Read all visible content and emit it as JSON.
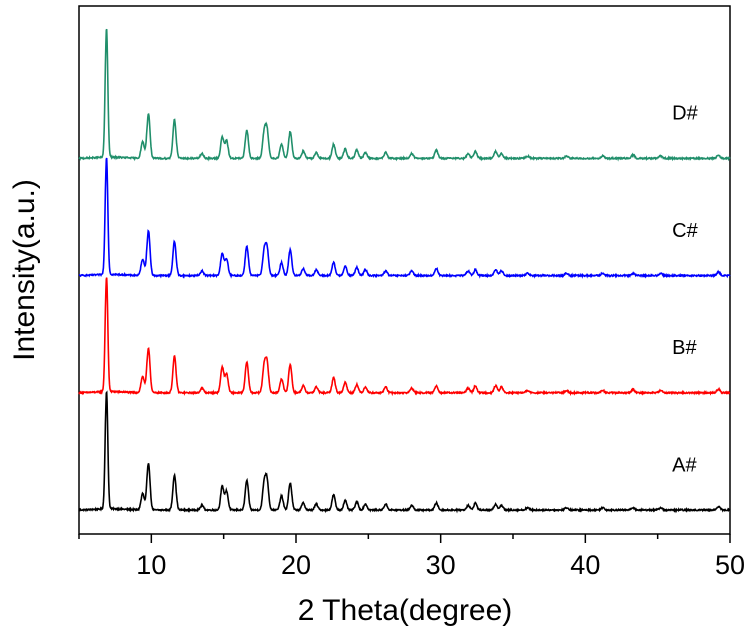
{
  "chart_data": {
    "type": "line",
    "title": "",
    "xlabel": "2 Theta(degree)",
    "ylabel": "Intensity(a.u.)",
    "xlim": [
      5,
      50
    ],
    "ylim": [
      0,
      4.3
    ],
    "x_ticks": [
      10,
      20,
      30,
      40,
      50
    ],
    "y_ticks_shown": false,
    "grid": false,
    "legend": "none",
    "series": [
      {
        "name": "A#",
        "color": "#000000",
        "offset": 0,
        "peaks": [
          [
            6.9,
            1.0
          ],
          [
            9.4,
            0.14
          ],
          [
            9.8,
            0.4
          ],
          [
            11.6,
            0.3
          ],
          [
            13.5,
            0.04
          ],
          [
            14.9,
            0.2
          ],
          [
            15.2,
            0.16
          ],
          [
            16.6,
            0.25
          ],
          [
            17.8,
            0.22
          ],
          [
            18.0,
            0.24
          ],
          [
            19.0,
            0.12
          ],
          [
            19.6,
            0.23
          ],
          [
            20.5,
            0.06
          ],
          [
            21.4,
            0.05
          ],
          [
            22.6,
            0.13
          ],
          [
            23.4,
            0.08
          ],
          [
            24.2,
            0.07
          ],
          [
            24.8,
            0.05
          ],
          [
            26.2,
            0.05
          ],
          [
            28.0,
            0.04
          ],
          [
            29.7,
            0.06
          ],
          [
            31.9,
            0.04
          ],
          [
            32.4,
            0.06
          ],
          [
            33.8,
            0.05
          ],
          [
            34.2,
            0.04
          ],
          [
            36.0,
            0.02
          ],
          [
            38.7,
            0.02
          ],
          [
            41.2,
            0.02
          ],
          [
            43.3,
            0.02
          ],
          [
            45.2,
            0.02
          ],
          [
            49.2,
            0.03
          ]
        ]
      },
      {
        "name": "B#",
        "color": "#ff0000",
        "offset": 1,
        "peaks": [
          [
            6.9,
            0.98
          ],
          [
            9.4,
            0.14
          ],
          [
            9.8,
            0.38
          ],
          [
            11.6,
            0.31
          ],
          [
            13.5,
            0.04
          ],
          [
            14.9,
            0.22
          ],
          [
            15.2,
            0.16
          ],
          [
            16.6,
            0.26
          ],
          [
            17.8,
            0.22
          ],
          [
            18.0,
            0.24
          ],
          [
            19.0,
            0.12
          ],
          [
            19.6,
            0.24
          ],
          [
            20.5,
            0.06
          ],
          [
            21.4,
            0.05
          ],
          [
            22.6,
            0.13
          ],
          [
            23.4,
            0.09
          ],
          [
            24.2,
            0.07
          ],
          [
            24.8,
            0.05
          ],
          [
            26.2,
            0.05
          ],
          [
            28.0,
            0.04
          ],
          [
            29.7,
            0.06
          ],
          [
            31.9,
            0.04
          ],
          [
            32.4,
            0.06
          ],
          [
            33.8,
            0.06
          ],
          [
            34.2,
            0.05
          ],
          [
            36.0,
            0.02
          ],
          [
            38.7,
            0.02
          ],
          [
            41.2,
            0.02
          ],
          [
            43.3,
            0.03
          ],
          [
            45.2,
            0.02
          ],
          [
            49.2,
            0.03
          ]
        ]
      },
      {
        "name": "C#",
        "color": "#0000ff",
        "offset": 2,
        "peaks": [
          [
            6.9,
            1.0
          ],
          [
            9.4,
            0.14
          ],
          [
            9.8,
            0.38
          ],
          [
            11.6,
            0.29
          ],
          [
            13.5,
            0.04
          ],
          [
            14.9,
            0.19
          ],
          [
            15.2,
            0.14
          ],
          [
            16.6,
            0.25
          ],
          [
            17.8,
            0.2
          ],
          [
            18.0,
            0.22
          ],
          [
            19.0,
            0.11
          ],
          [
            19.6,
            0.22
          ],
          [
            20.5,
            0.06
          ],
          [
            21.4,
            0.05
          ],
          [
            22.6,
            0.11
          ],
          [
            23.4,
            0.08
          ],
          [
            24.2,
            0.07
          ],
          [
            24.8,
            0.05
          ],
          [
            26.2,
            0.04
          ],
          [
            28.0,
            0.04
          ],
          [
            29.7,
            0.06
          ],
          [
            31.9,
            0.04
          ],
          [
            32.4,
            0.05
          ],
          [
            33.8,
            0.05
          ],
          [
            34.2,
            0.04
          ],
          [
            36.0,
            0.02
          ],
          [
            38.7,
            0.02
          ],
          [
            41.2,
            0.02
          ],
          [
            43.3,
            0.02
          ],
          [
            45.2,
            0.02
          ],
          [
            49.2,
            0.03
          ]
        ]
      },
      {
        "name": "D#",
        "color": "#218f6b",
        "offset": 3,
        "peaks": [
          [
            6.9,
            1.1
          ],
          [
            9.4,
            0.14
          ],
          [
            9.8,
            0.38
          ],
          [
            11.6,
            0.33
          ],
          [
            13.5,
            0.04
          ],
          [
            14.9,
            0.18
          ],
          [
            15.2,
            0.15
          ],
          [
            16.6,
            0.24
          ],
          [
            17.8,
            0.21
          ],
          [
            18.0,
            0.23
          ],
          [
            19.0,
            0.12
          ],
          [
            19.6,
            0.23
          ],
          [
            20.5,
            0.06
          ],
          [
            21.4,
            0.05
          ],
          [
            22.6,
            0.12
          ],
          [
            23.4,
            0.08
          ],
          [
            24.2,
            0.07
          ],
          [
            24.8,
            0.05
          ],
          [
            26.2,
            0.05
          ],
          [
            28.0,
            0.04
          ],
          [
            29.7,
            0.07
          ],
          [
            31.9,
            0.04
          ],
          [
            32.4,
            0.06
          ],
          [
            33.8,
            0.06
          ],
          [
            34.2,
            0.04
          ],
          [
            36.0,
            0.02
          ],
          [
            38.7,
            0.02
          ],
          [
            41.2,
            0.02
          ],
          [
            43.3,
            0.03
          ],
          [
            45.2,
            0.02
          ],
          [
            49.2,
            0.03
          ]
        ]
      }
    ],
    "series_labels": [
      {
        "text": "A#",
        "x": 46.0,
        "y": 0.33
      },
      {
        "text": "B#",
        "x": 46.0,
        "y": 1.33
      },
      {
        "text": "C#",
        "x": 46.0,
        "y": 2.33
      },
      {
        "text": "D#",
        "x": 46.0,
        "y": 3.33
      }
    ]
  }
}
